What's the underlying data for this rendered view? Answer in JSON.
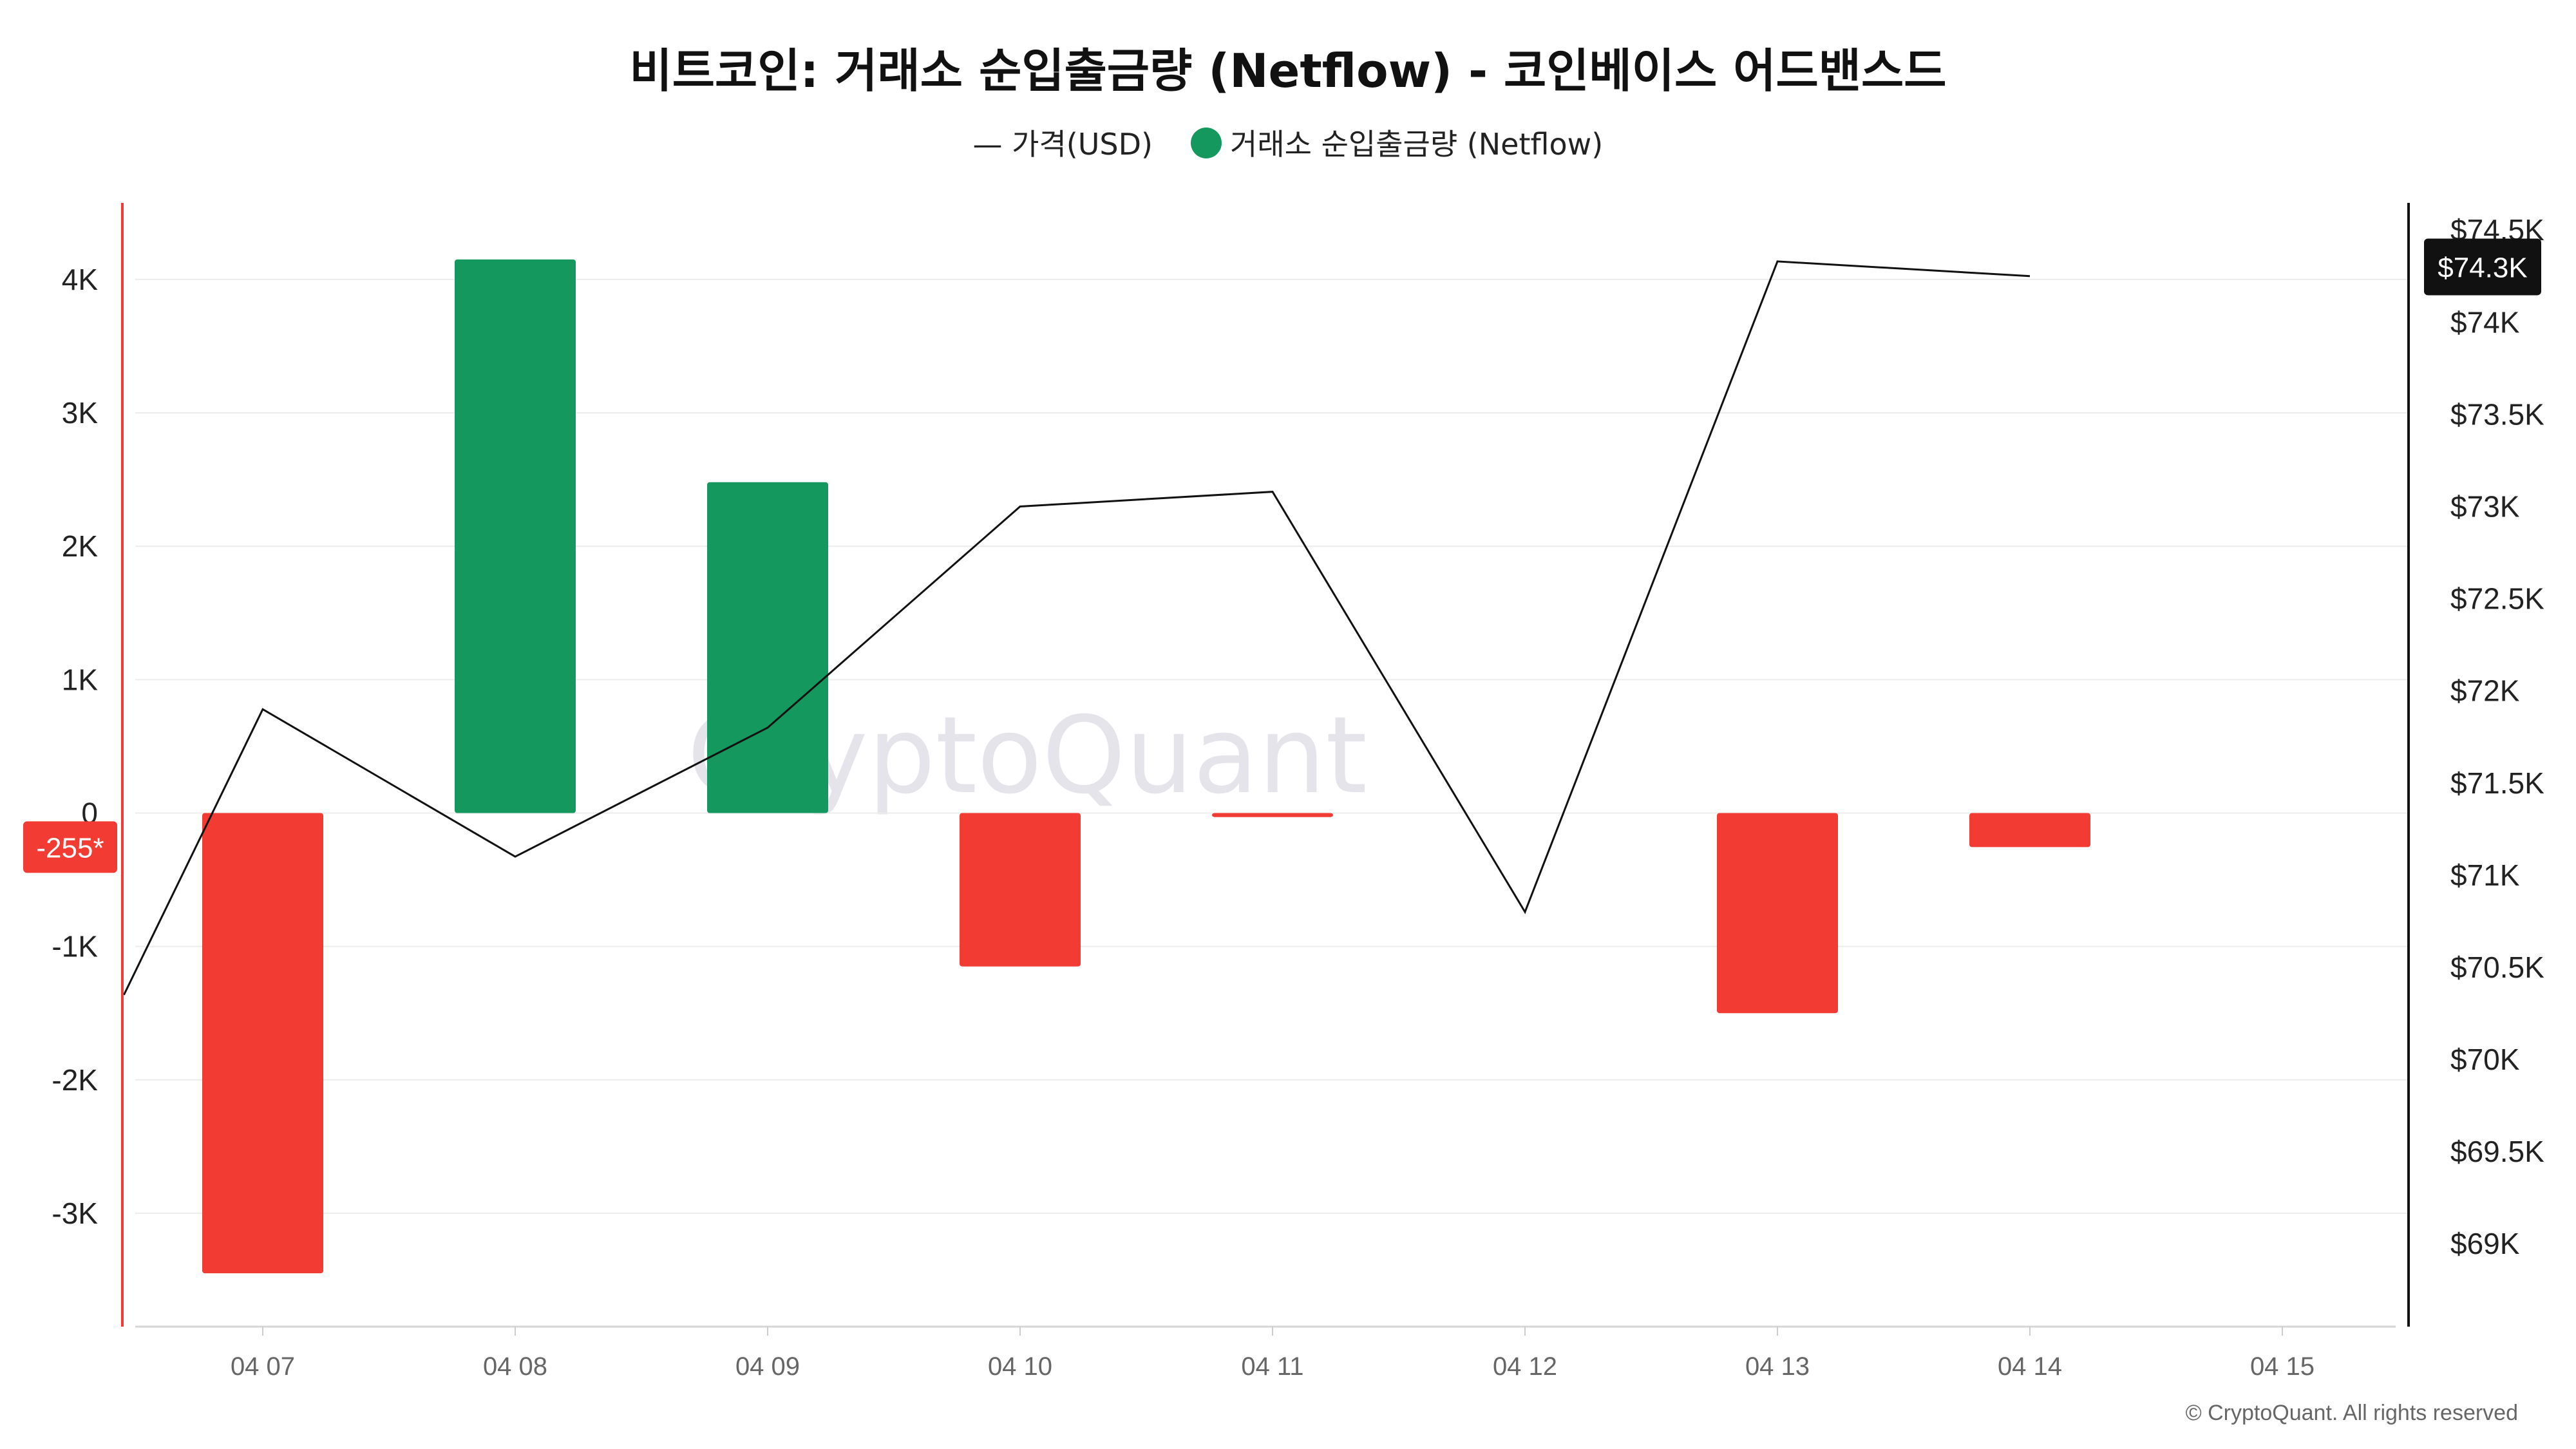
{
  "title": "비트코인: 거래소 순입출금량 (Netflow) - 코인베이스 어드밴스드",
  "legend": {
    "price_label": "— 가격(USD)",
    "netflow_label": "거래소 순입출금량 (Netflow)"
  },
  "watermark": "CryptoQuant",
  "copyright": "© CryptoQuant. All rights reserved",
  "colors": {
    "positive": "#14985e",
    "negative": "#f23c33",
    "price_line": "#111111",
    "grid": "#ececec",
    "left_axis": "#f23c33",
    "right_axis": "#111111",
    "price_badge_bg": "#111111",
    "netflow_badge_bg": "#f23c33"
  },
  "chart_data": {
    "type": "bar",
    "categories": [
      "04 07",
      "04 08",
      "04 09",
      "04 10",
      "04 11",
      "04 12",
      "04 13",
      "04 14",
      "04 15"
    ],
    "series": [
      {
        "name": "거래소 순입출금량 (Netflow)",
        "axis": "left",
        "type": "bar",
        "values": [
          -3450,
          4150,
          2480,
          -1150,
          -30,
          null,
          -1500,
          -255,
          null
        ]
      },
      {
        "name": "가격(USD)",
        "axis": "right",
        "type": "line",
        "x": [
          6.45,
          7.0,
          8.0,
          9.0,
          10.0,
          11.0,
          12.0,
          13.0,
          14.0
        ],
        "values": [
          70350,
          71900,
          71100,
          71800,
          73000,
          73080,
          70800,
          74330,
          74250
        ]
      }
    ],
    "left_axis": {
      "ticks": [
        -3000,
        -2000,
        -1000,
        0,
        1000,
        2000,
        3000,
        4000
      ],
      "tick_labels": [
        "-3K",
        "-2K",
        "-1K",
        "0",
        "1K",
        "2K",
        "3K",
        "4K"
      ],
      "ylim": [
        -3850,
        4550
      ]
    },
    "right_axis": {
      "ticks": [
        69000,
        69500,
        70000,
        70500,
        71000,
        71500,
        72000,
        72500,
        73000,
        73500,
        74000,
        74500
      ],
      "tick_labels": [
        "$69K",
        "$69.5K",
        "$70K",
        "$70.5K",
        "$71K",
        "$71.5K",
        "$72K",
        "$72.5K",
        "$73K",
        "$73.5K",
        "$74K",
        "$74.5K"
      ],
      "ylim": [
        68550,
        74630
      ]
    },
    "last_price_label": "$74.3K",
    "last_price_value": 74300,
    "last_netflow_label": "-255*",
    "last_netflow_value": -255,
    "grid": true,
    "legend_position": "top-center"
  }
}
